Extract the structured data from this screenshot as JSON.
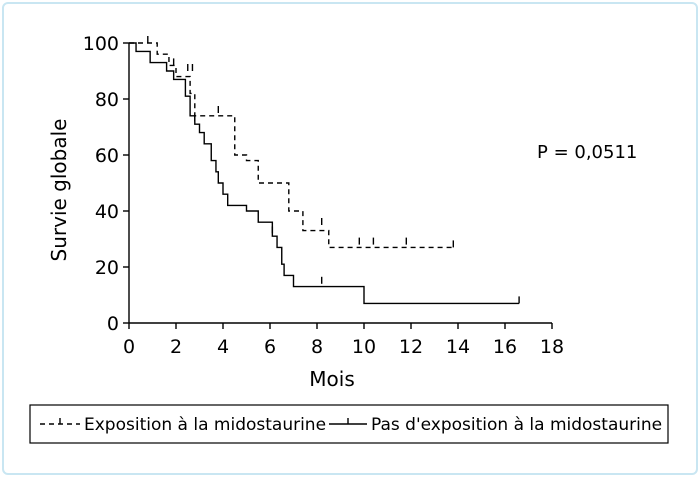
{
  "chart_data": {
    "type": "line",
    "xlabel": "Mois",
    "ylabel": "Survie globale",
    "xlim": [
      0,
      18
    ],
    "ylim": [
      0,
      100
    ],
    "xticks": [
      "0",
      "2",
      "4",
      "6",
      "8",
      "10",
      "12",
      "14",
      "16",
      "18"
    ],
    "yticks": [
      "0",
      "20",
      "40",
      "60",
      "80",
      "100"
    ],
    "annotation": "P = 0,0511",
    "grid": false,
    "legend_position": "bottom",
    "series": [
      {
        "name": "Exposition à la midostaurine",
        "style": "dashed",
        "steps": [
          [
            0,
            100
          ],
          [
            1.2,
            96
          ],
          [
            1.7,
            92
          ],
          [
            2,
            88
          ],
          [
            2.6,
            82
          ],
          [
            2.8,
            74
          ],
          [
            4.5,
            60
          ],
          [
            5,
            58
          ],
          [
            5.5,
            50
          ],
          [
            6.8,
            40
          ],
          [
            7.4,
            33
          ],
          [
            8.5,
            27
          ],
          [
            13.8,
            27
          ]
        ],
        "censored": [
          [
            0.8,
            100
          ],
          [
            1.9,
            92
          ],
          [
            2.5,
            90
          ],
          [
            2.7,
            90
          ],
          [
            3.8,
            75
          ],
          [
            8.2,
            35
          ],
          [
            9.8,
            28
          ],
          [
            10.4,
            28
          ],
          [
            11.8,
            28
          ],
          [
            13.8,
            27
          ]
        ]
      },
      {
        "name": "Pas d'exposition à la midostaurine",
        "style": "solid",
        "steps": [
          [
            0,
            100
          ],
          [
            0.3,
            97
          ],
          [
            0.9,
            93
          ],
          [
            1.6,
            90
          ],
          [
            1.9,
            87
          ],
          [
            2.4,
            81
          ],
          [
            2.6,
            74
          ],
          [
            2.8,
            71
          ],
          [
            3,
            68
          ],
          [
            3.2,
            64
          ],
          [
            3.5,
            58
          ],
          [
            3.7,
            54
          ],
          [
            3.8,
            50
          ],
          [
            4,
            46
          ],
          [
            4.2,
            42
          ],
          [
            5,
            40
          ],
          [
            5.5,
            36
          ],
          [
            6.1,
            31
          ],
          [
            6.3,
            27
          ],
          [
            6.5,
            21
          ],
          [
            6.6,
            17
          ],
          [
            7,
            13
          ],
          [
            10,
            7
          ],
          [
            16.6,
            7
          ]
        ],
        "censored": [
          [
            2.8,
            72
          ],
          [
            6.1,
            32
          ],
          [
            8.2,
            14
          ],
          [
            16.6,
            7
          ]
        ]
      }
    ]
  }
}
